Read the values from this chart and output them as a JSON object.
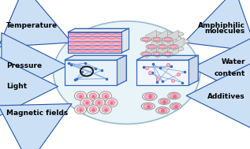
{
  "bg_color": "#ffffff",
  "ellipse_fc": "#e8f4f8",
  "ellipse_ec": "#99bbcc",
  "arrow_color": "#2255aa",
  "arrow_face": "#cce0f5",
  "labels_left": [
    "Temperature",
    "Pressure",
    "Light",
    "Magnetic fields"
  ],
  "labels_right_1": [
    "Amphiphilic",
    "molecules"
  ],
  "labels_right_2": [
    "Water",
    "content"
  ],
  "labels_right_3": [
    "Additives"
  ],
  "label_fontsize": 6.5,
  "label_fontweight": "bold",
  "pink": "#e87090",
  "lpink": "#f4b8c8",
  "blue": "#3366bb",
  "lblue": "#88aadd",
  "gray": "#999999",
  "lgray": "#dddddd",
  "darkblue": "#112288"
}
